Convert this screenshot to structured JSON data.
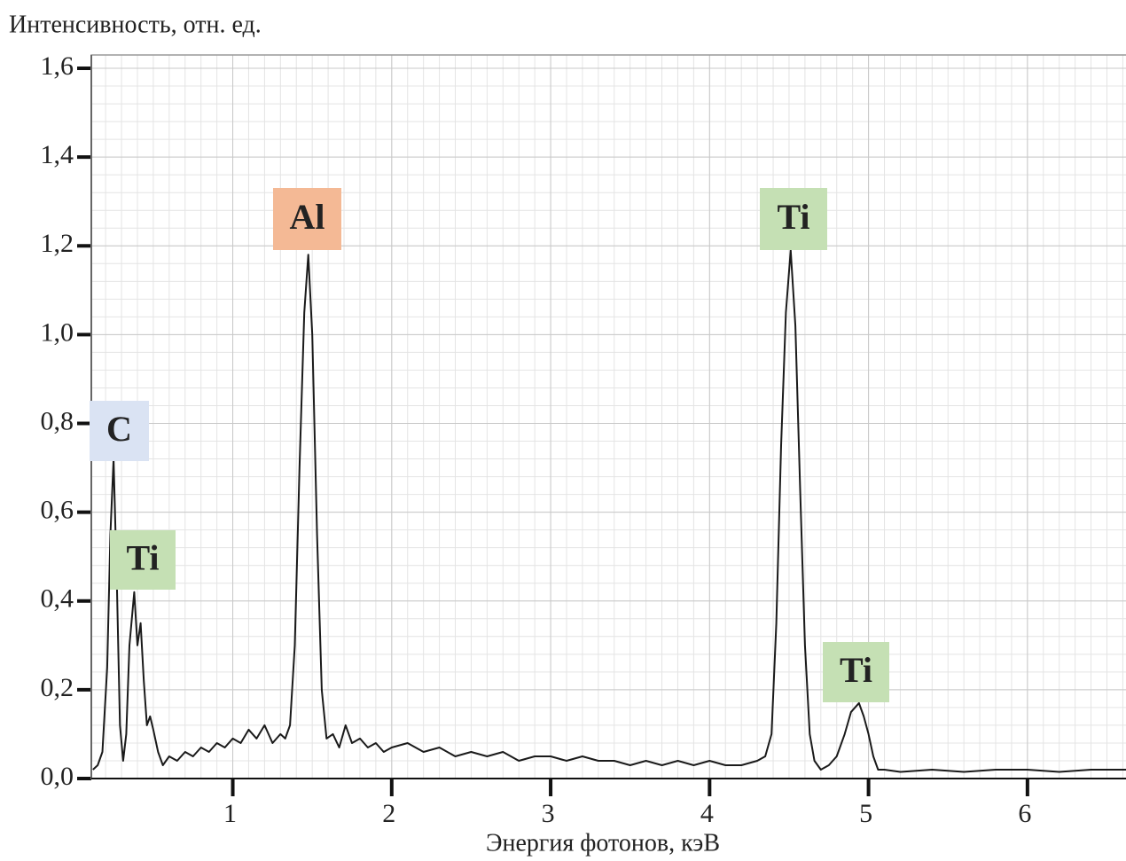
{
  "chart_data": {
    "type": "line",
    "y_label": "Интенсивность, отн. ед.",
    "x_label": "Энергия фотонов, кэВ",
    "color": "#1a1a1a",
    "x": [
      0.12,
      0.15,
      0.18,
      0.21,
      0.23,
      0.25,
      0.27,
      0.29,
      0.31,
      0.33,
      0.35,
      0.38,
      0.4,
      0.42,
      0.44,
      0.46,
      0.48,
      0.5,
      0.53,
      0.56,
      0.6,
      0.65,
      0.7,
      0.75,
      0.8,
      0.85,
      0.9,
      0.95,
      1.0,
      1.05,
      1.1,
      1.15,
      1.2,
      1.25,
      1.3,
      1.33,
      1.36,
      1.39,
      1.42,
      1.45,
      1.475,
      1.5,
      1.53,
      1.56,
      1.59,
      1.63,
      1.67,
      1.71,
      1.75,
      1.8,
      1.85,
      1.9,
      1.95,
      2.0,
      2.1,
      2.2,
      2.3,
      2.4,
      2.5,
      2.6,
      2.7,
      2.8,
      2.9,
      3.0,
      3.1,
      3.2,
      3.3,
      3.4,
      3.5,
      3.6,
      3.7,
      3.8,
      3.9,
      4.0,
      4.1,
      4.2,
      4.3,
      4.35,
      4.39,
      4.42,
      4.45,
      4.48,
      4.51,
      4.54,
      4.57,
      4.6,
      4.63,
      4.66,
      4.7,
      4.75,
      4.8,
      4.85,
      4.89,
      4.94,
      4.97,
      5.0,
      5.03,
      5.06,
      5.1,
      5.2,
      5.4,
      5.6,
      5.8,
      6.0,
      6.2,
      6.4,
      6.62
    ],
    "values": [
      0.02,
      0.03,
      0.06,
      0.25,
      0.55,
      0.72,
      0.45,
      0.12,
      0.04,
      0.1,
      0.3,
      0.42,
      0.3,
      0.35,
      0.22,
      0.12,
      0.14,
      0.11,
      0.06,
      0.03,
      0.05,
      0.04,
      0.06,
      0.05,
      0.07,
      0.06,
      0.08,
      0.07,
      0.09,
      0.08,
      0.11,
      0.09,
      0.12,
      0.08,
      0.1,
      0.09,
      0.12,
      0.3,
      0.7,
      1.05,
      1.18,
      1.0,
      0.55,
      0.2,
      0.09,
      0.1,
      0.07,
      0.12,
      0.08,
      0.09,
      0.07,
      0.08,
      0.06,
      0.07,
      0.08,
      0.06,
      0.07,
      0.05,
      0.06,
      0.05,
      0.06,
      0.04,
      0.05,
      0.05,
      0.04,
      0.05,
      0.04,
      0.04,
      0.03,
      0.04,
      0.03,
      0.04,
      0.03,
      0.04,
      0.03,
      0.03,
      0.04,
      0.05,
      0.1,
      0.35,
      0.75,
      1.05,
      1.19,
      1.02,
      0.65,
      0.3,
      0.1,
      0.04,
      0.02,
      0.03,
      0.05,
      0.1,
      0.15,
      0.17,
      0.14,
      0.1,
      0.05,
      0.02,
      0.02,
      0.015,
      0.02,
      0.015,
      0.02,
      0.02,
      0.015,
      0.02,
      0.02
    ],
    "xlim": [
      0.11,
      6.62
    ],
    "xticks": [
      1,
      2,
      3,
      4,
      5,
      6
    ],
    "ylim": [
      0,
      1.63
    ],
    "yticks": [
      {
        "value": 0,
        "label": "0,0"
      },
      {
        "value": 0.2,
        "label": "0,2"
      },
      {
        "value": 0.4,
        "label": "0,4"
      },
      {
        "value": 0.6,
        "label": "0,6"
      },
      {
        "value": 0.8,
        "label": "0,8"
      },
      {
        "value": 1.0,
        "label": "1,0"
      },
      {
        "value": 1.2,
        "label": "1,2"
      },
      {
        "value": 1.4,
        "label": "1,4"
      },
      {
        "value": 1.6,
        "label": "1,6"
      }
    ],
    "grid": true,
    "annotations": [
      {
        "text": "C",
        "color": "#dae3f3"
      },
      {
        "text": "Ti",
        "color": "#c5e0b4"
      },
      {
        "text": "Al",
        "color": "#f4b995"
      },
      {
        "text": "Ti",
        "color": "#c5e0b4"
      },
      {
        "text": "Ti",
        "color": "#c5e0b4"
      }
    ]
  }
}
